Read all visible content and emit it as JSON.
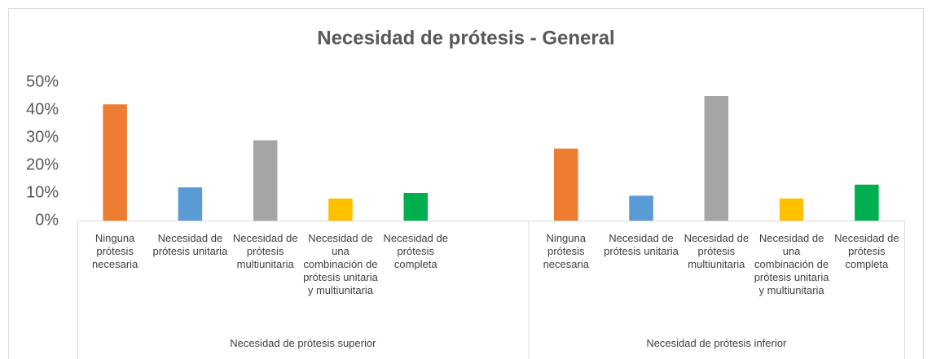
{
  "chart_data": {
    "type": "bar",
    "title": "Necesidad de prótesis - General",
    "groups": [
      {
        "name": "Necesidad de prótesis superior",
        "categories": [
          "Ninguna prótesis necesaria",
          "Necesidad de prótesis unitaria",
          "Necesidad de prótesis multiunitaria",
          "Necesidad de una combinación de prótesis unitaria y multiunitaria",
          "Necesidad de prótesis completa",
          null
        ],
        "values": [
          42,
          12,
          29,
          8,
          10,
          null
        ],
        "colors": [
          "#ED7D31",
          "#5B9BD5",
          "#A5A5A5",
          "#FFC000",
          "#00B050",
          null
        ]
      },
      {
        "name": "Necesidad de prótesis inferior",
        "categories": [
          "Ninguna prótesis necesaria",
          "Necesidad de prótesis unitaria",
          "Necesidad de prótesis multiunitaria",
          "Necesidad de una combinación de prótesis unitaria y multiunitaria",
          "Necesidad de prótesis completa"
        ],
        "values": [
          26,
          9,
          45,
          8,
          13
        ],
        "colors": [
          "#ED7D31",
          "#5B9BD5",
          "#A5A5A5",
          "#FFC000",
          "#00B050"
        ]
      }
    ],
    "ylim": [
      0,
      50
    ],
    "yticks": [
      {
        "value": 0,
        "label": "0%"
      },
      {
        "value": 10,
        "label": "10%"
      },
      {
        "value": 20,
        "label": "20%"
      },
      {
        "value": 30,
        "label": "30%"
      },
      {
        "value": 40,
        "label": "40%"
      },
      {
        "value": 50,
        "label": "50%"
      }
    ],
    "grid": false
  }
}
